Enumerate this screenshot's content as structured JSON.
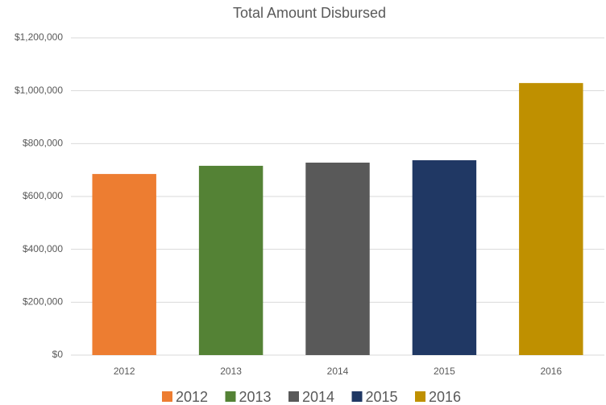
{
  "chart_data": {
    "type": "bar",
    "title": "Total Amount Disbursed",
    "categories": [
      "2012",
      "2013",
      "2014",
      "2015",
      "2016"
    ],
    "values": [
      685000,
      716000,
      728000,
      737000,
      1029000
    ],
    "colors": [
      "#ed7d31",
      "#548235",
      "#595959",
      "#203864",
      "#bf9000"
    ],
    "ylim": [
      0,
      1200000
    ],
    "yticks": [
      {
        "value": 0,
        "label": "$0"
      },
      {
        "value": 200000,
        "label": "$200,000"
      },
      {
        "value": 400000,
        "label": "$400,000"
      },
      {
        "value": 600000,
        "label": "$600,000"
      },
      {
        "value": 800000,
        "label": "$800,000"
      },
      {
        "value": 1000000,
        "label": "$1,000,000"
      },
      {
        "value": 1200000,
        "label": "$1,200,000"
      }
    ],
    "grid": true,
    "legend": "bottom"
  }
}
